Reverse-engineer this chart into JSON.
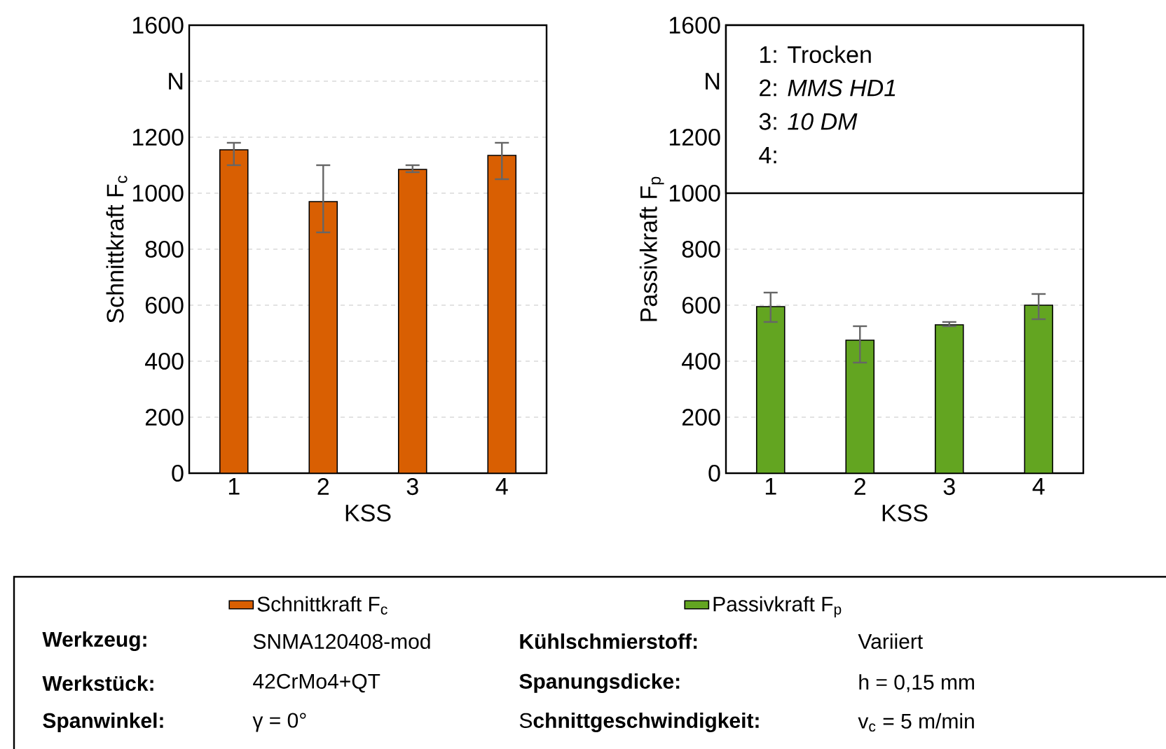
{
  "chart_data": [
    {
      "type": "bar",
      "ylabel": "Schnittkraft F$_{c}$",
      "xlabel": "KSS",
      "categories": [
        "1",
        "2",
        "3",
        "4"
      ],
      "series": [
        {
          "name": "Schnittkraft F$_{c}$",
          "color": "#d95f02",
          "values": [
            1155,
            970,
            1085,
            1135
          ],
          "errors": [
            [
              1100,
              1180
            ],
            [
              860,
              1100
            ],
            [
              1075,
              1100
            ],
            [
              1050,
              1180
            ]
          ]
        }
      ],
      "ylim": [
        0,
        1600
      ],
      "yticks": [
        0,
        200,
        400,
        600,
        800,
        1000,
        1200,
        {
          "value": 1400,
          "label": "N"
        },
        1600
      ],
      "grid": "y",
      "legend": "bottom"
    },
    {
      "type": "bar",
      "ylabel": "Passivkraft F$_{p}$",
      "xlabel": "KSS",
      "categories": [
        "1",
        "2",
        "3",
        "4"
      ],
      "series": [
        {
          "name": "Passivkraft F$_{p}$",
          "color": "#63a521",
          "values": [
            595,
            475,
            530,
            600
          ],
          "errors": [
            [
              540,
              645
            ],
            [
              395,
              525
            ],
            [
              525,
              540
            ],
            [
              550,
              640
            ]
          ]
        }
      ],
      "ylim": [
        0,
        1600
      ],
      "yticks": [
        0,
        200,
        400,
        600,
        800,
        1000,
        1200,
        {
          "value": 1400,
          "label": "N"
        },
        1600
      ],
      "grid": "y",
      "legend": "bottom",
      "annotations": [
        "1: Trocken",
        "2: *MMS HD1*",
        "3: *10 DM*",
        "4:"
      ]
    },
    {
      "type": "other",
      "annotations": [
        "**Werkzeug:**",
        "SNMA120408-mod",
        "**Kühlschmierstoff:**",
        "Variiert",
        "**Werkstück:**",
        "42CrMo4+QT",
        "**Spanungsdicke:**",
        "h = 0,15 mm",
        "**Spanwinkel:**",
        "γ = 0°",
        "S**chnittgeschwindigkeit:**",
        "v$_{c}$ = 5 m/min"
      ]
    }
  ]
}
